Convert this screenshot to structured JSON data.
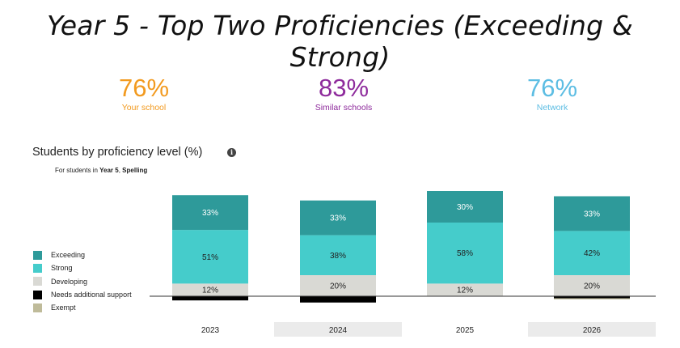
{
  "slide_title": "Year 5 - Top Two Proficiencies (Exceeding & Strong)",
  "stats": [
    {
      "value": "76%",
      "label": "Your school",
      "color": "#f29a1f"
    },
    {
      "value": "83%",
      "label": "Similar schools",
      "color": "#8e2b9c"
    },
    {
      "value": "76%",
      "label": "Network",
      "color": "#5cbde3"
    }
  ],
  "chart_title": "Students by proficiency level (%)",
  "subtitle": {
    "prefix": "For students in ",
    "year": "Year 5",
    "sep": ", ",
    "subject": "Spelling"
  },
  "chart_data": {
    "type": "bar",
    "stacked": true,
    "title": "Students by proficiency level (%)",
    "categories": [
      "2023",
      "2024",
      "2025",
      "2026"
    ],
    "series": [
      {
        "name": "Exceeding",
        "color": "#2e9a9a",
        "values": [
          33,
          33,
          30,
          33
        ],
        "labels": [
          "33%",
          "33%",
          "30%",
          "33%"
        ]
      },
      {
        "name": "Strong",
        "color": "#45cccb",
        "values": [
          51,
          38,
          58,
          42
        ],
        "labels": [
          "51%",
          "38%",
          "58%",
          "42%"
        ]
      },
      {
        "name": "Developing",
        "color": "#d9d9d4",
        "values": [
          12,
          20,
          12,
          20
        ],
        "labels": [
          "12%",
          "20%",
          "12%",
          "20%"
        ]
      },
      {
        "name": "Needs additional support",
        "color": "#000000",
        "values": [
          4,
          6,
          0,
          2
        ],
        "labels": [
          "",
          "",
          "",
          ""
        ]
      },
      {
        "name": "Exempt",
        "color": "#bfbb9a",
        "values": [
          0,
          0,
          0,
          1
        ],
        "labels": [
          "",
          "",
          "",
          ""
        ]
      }
    ],
    "baseline_between": [
      "Developing",
      "Needs additional support"
    ],
    "legend_position": "left",
    "grid": false
  },
  "info_icon": "info-icon"
}
